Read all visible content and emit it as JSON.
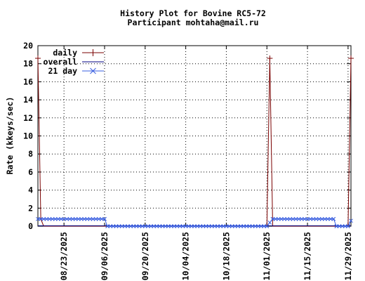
{
  "colors": {
    "daily": "#7a0000",
    "overall": "#000080",
    "day21": "#3a5fe0",
    "grid": "#000000",
    "frame": "#000000"
  },
  "chart_data": {
    "type": "line",
    "title": "History Plot for Bovine RC5-72",
    "subtitle": "Participant mohtaha@mail.ru",
    "xlabel": "",
    "ylabel": "Rate (kkeys/sec)",
    "xlim": [
      "2025-08-14",
      "2025-11-30"
    ],
    "ylim": [
      0,
      20
    ],
    "yticks": [
      0,
      2,
      4,
      6,
      8,
      10,
      12,
      14,
      16,
      18,
      20
    ],
    "xticks": [
      "08/23/2025",
      "09/06/2025",
      "09/20/2025",
      "10/04/2025",
      "10/18/2025",
      "11/01/2025",
      "11/15/2025",
      "11/29/2025"
    ],
    "grid": true,
    "legend_position": "top-left",
    "series": [
      {
        "name": "daily",
        "style": "line+plus",
        "points": [
          [
            "2025-08-14",
            18.6
          ],
          [
            "2025-08-15",
            0.8
          ],
          [
            "2025-08-16",
            0
          ],
          [
            "2025-11-01",
            0
          ],
          [
            "2025-11-02",
            18.6
          ],
          [
            "2025-11-03",
            0
          ],
          [
            "2025-11-29",
            0
          ],
          [
            "2025-11-30",
            18.6
          ]
        ]
      },
      {
        "name": "overall",
        "style": "line",
        "points": [
          [
            "2025-08-14",
            0.05
          ],
          [
            "2025-11-30",
            0.05
          ]
        ]
      },
      {
        "name": "21 day",
        "style": "line+cross",
        "points": [
          [
            "2025-08-14",
            0.8
          ],
          [
            "2025-09-06",
            0.8
          ],
          [
            "2025-09-07",
            0
          ],
          [
            "2025-11-01",
            0
          ],
          [
            "2025-11-03",
            0.8
          ],
          [
            "2025-11-24",
            0.8
          ],
          [
            "2025-11-25",
            0
          ],
          [
            "2025-11-29",
            0
          ],
          [
            "2025-11-30",
            0.6
          ]
        ]
      }
    ]
  }
}
